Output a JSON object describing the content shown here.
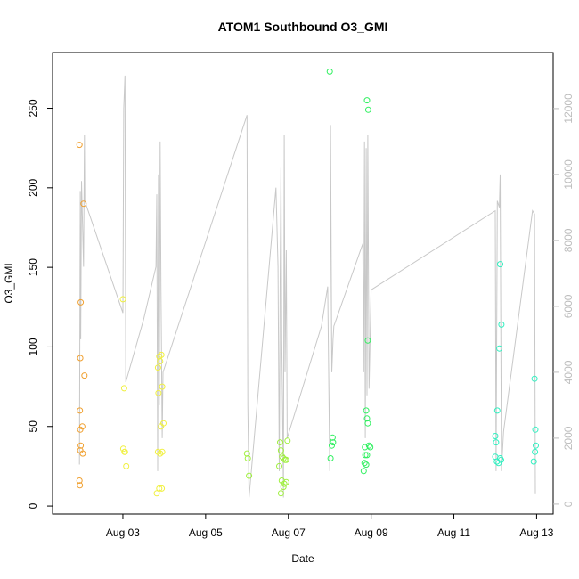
{
  "chart_data": {
    "type": "scatter",
    "title": "ATOM1 Southbound O3_GMI",
    "xlabel": "Date",
    "ylabel": "O3_GMI",
    "x_ticks": [
      "Aug 03",
      "Aug 05",
      "Aug 07",
      "Aug 09",
      "Aug 11",
      "Aug 13"
    ],
    "x_tick_values": [
      3,
      5,
      7,
      9,
      11,
      13
    ],
    "y_ticks": [
      0,
      50,
      100,
      150,
      200,
      250
    ],
    "y2_ticks": [
      0,
      2000,
      4000,
      6000,
      8000,
      10000,
      12000
    ],
    "xlim": [
      1.3,
      13.4
    ],
    "ylim": [
      -5,
      285
    ],
    "y2lim": [
      -300,
      13700
    ],
    "grid": false,
    "series": [
      {
        "color": "#f0a030",
        "points": [
          [
            1.95,
            227
          ],
          [
            1.95,
            16
          ],
          [
            1.96,
            13
          ],
          [
            1.97,
            93
          ],
          [
            1.98,
            128
          ],
          [
            1.96,
            60
          ],
          [
            1.97,
            48
          ],
          [
            1.98,
            38
          ],
          [
            1.97,
            35
          ],
          [
            2.02,
            50
          ],
          [
            2.03,
            33
          ],
          [
            2.05,
            190
          ],
          [
            2.07,
            82
          ]
        ]
      },
      {
        "color": "#f0f040",
        "points": [
          [
            3.0,
            130
          ],
          [
            3.03,
            74
          ],
          [
            3.01,
            36
          ],
          [
            3.05,
            34
          ],
          [
            3.04,
            34
          ],
          [
            3.08,
            25
          ],
          [
            3.85,
            87
          ],
          [
            3.9,
            91
          ],
          [
            3.88,
            94
          ],
          [
            3.93,
            95
          ],
          [
            3.86,
            71
          ],
          [
            3.95,
            75
          ],
          [
            3.98,
            52
          ],
          [
            3.92,
            50
          ],
          [
            3.85,
            34
          ],
          [
            3.9,
            33
          ],
          [
            3.95,
            34
          ],
          [
            3.88,
            11
          ],
          [
            3.94,
            11
          ],
          [
            3.82,
            8
          ]
        ]
      },
      {
        "color": "#a0f040",
        "points": [
          [
            6.0,
            33
          ],
          [
            6.02,
            30
          ],
          [
            6.05,
            19
          ],
          [
            6.8,
            40
          ],
          [
            6.82,
            35
          ],
          [
            6.78,
            25
          ],
          [
            6.85,
            31
          ],
          [
            6.88,
            30
          ],
          [
            6.92,
            29
          ],
          [
            6.95,
            29
          ],
          [
            6.84,
            16
          ],
          [
            6.9,
            14
          ],
          [
            6.95,
            15
          ],
          [
            6.98,
            41
          ],
          [
            6.88,
            12
          ],
          [
            6.82,
            8
          ]
        ]
      },
      {
        "color": "#30f060",
        "points": [
          [
            8.0,
            273
          ],
          [
            8.02,
            30
          ],
          [
            8.05,
            38
          ],
          [
            8.07,
            43
          ],
          [
            8.08,
            40
          ],
          [
            8.9,
            255
          ],
          [
            8.93,
            249
          ],
          [
            8.92,
            104
          ],
          [
            8.88,
            60
          ],
          [
            8.9,
            55
          ],
          [
            8.92,
            52
          ],
          [
            8.85,
            37
          ],
          [
            8.95,
            38
          ],
          [
            8.98,
            37
          ],
          [
            8.86,
            32
          ],
          [
            8.9,
            32
          ],
          [
            8.84,
            27
          ],
          [
            8.88,
            26
          ],
          [
            8.82,
            22
          ]
        ]
      },
      {
        "color": "#30f0c0",
        "points": [
          [
            12.0,
            44
          ],
          [
            12.05,
            60
          ],
          [
            12.1,
            99
          ],
          [
            12.12,
            152
          ],
          [
            12.15,
            114
          ],
          [
            12.02,
            40
          ],
          [
            12.0,
            31
          ],
          [
            12.04,
            28
          ],
          [
            12.08,
            27
          ],
          [
            12.12,
            30
          ],
          [
            12.14,
            29
          ],
          [
            12.95,
            80
          ],
          [
            12.97,
            48
          ],
          [
            12.98,
            38
          ],
          [
            12.96,
            34
          ],
          [
            12.93,
            28
          ]
        ]
      }
    ],
    "secondary_line": {
      "color": "#c8c8c8",
      "points": [
        [
          1.95,
          1200
        ],
        [
          1.96,
          5800
        ],
        [
          1.97,
          9500
        ],
        [
          1.98,
          5000
        ],
        [
          2.0,
          9800
        ],
        [
          2.05,
          7200
        ],
        [
          2.07,
          11200
        ],
        [
          2.08,
          9200
        ],
        [
          3.0,
          5800
        ],
        [
          3.02,
          12000
        ],
        [
          3.05,
          13000
        ],
        [
          3.07,
          3700
        ],
        [
          3.5,
          5600
        ],
        [
          3.8,
          7200
        ],
        [
          3.82,
          9400
        ],
        [
          3.84,
          1000
        ],
        [
          3.86,
          10000
        ],
        [
          3.88,
          3000
        ],
        [
          3.9,
          11000
        ],
        [
          3.92,
          6600
        ],
        [
          3.95,
          2000
        ],
        [
          3.97,
          4000
        ],
        [
          6.0,
          11800
        ],
        [
          6.02,
          3000
        ],
        [
          6.05,
          200
        ],
        [
          6.7,
          9600
        ],
        [
          6.75,
          7200
        ],
        [
          6.78,
          1000
        ],
        [
          6.8,
          6800
        ],
        [
          6.82,
          10200
        ],
        [
          6.84,
          5000
        ],
        [
          6.86,
          3000
        ],
        [
          6.88,
          200
        ],
        [
          6.9,
          11200
        ],
        [
          6.92,
          4000
        ],
        [
          6.95,
          7700
        ],
        [
          6.97,
          2000
        ],
        [
          7.8,
          5400
        ],
        [
          7.95,
          6600
        ],
        [
          8.0,
          1000
        ],
        [
          8.02,
          11500
        ],
        [
          8.05,
          4000
        ],
        [
          8.08,
          5000
        ],
        [
          8.1,
          5400
        ],
        [
          8.8,
          7900
        ],
        [
          8.82,
          4000
        ],
        [
          8.84,
          11000
        ],
        [
          8.86,
          2000
        ],
        [
          8.88,
          10800
        ],
        [
          8.9,
          3300
        ],
        [
          8.92,
          11200
        ],
        [
          8.95,
          3500
        ],
        [
          9.0,
          6500
        ],
        [
          12.0,
          8900
        ],
        [
          12.02,
          1000
        ],
        [
          12.05,
          9200
        ],
        [
          12.1,
          9000
        ],
        [
          12.12,
          10000
        ],
        [
          12.15,
          1000
        ],
        [
          12.2,
          2200
        ],
        [
          12.9,
          8900
        ],
        [
          12.95,
          8800
        ],
        [
          12.97,
          300
        ]
      ]
    }
  }
}
